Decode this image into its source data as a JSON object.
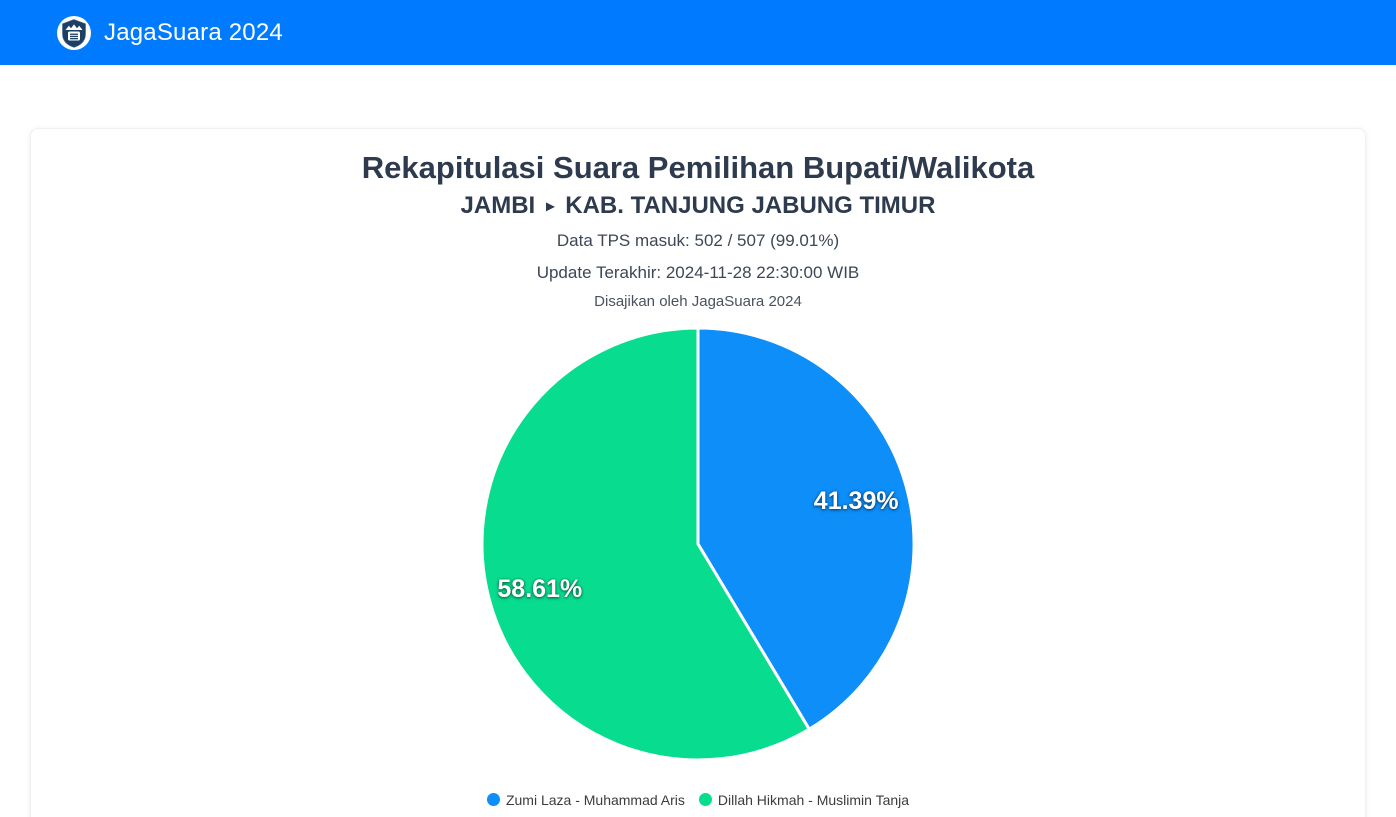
{
  "header": {
    "app_title": "JagaSuara 2024",
    "logo": "jagasuara-shield-logo"
  },
  "main": {
    "title": "Rekapitulasi Suara Pemilihan Bupati/Walikota",
    "breadcrumb": {
      "province": "JAMBI",
      "separator": "▸",
      "region": "KAB. TANJUNG JABUNG TIMUR"
    },
    "tps_line": "Data TPS masuk: 502 / 507 (99.01%)",
    "update_line": "Update Terakhir: 2024-11-28 22:30:00 WIB",
    "presented_line": "Disajikan oleh JagaSuara 2024"
  },
  "colors": {
    "header_bg": "#007bff",
    "title_text": "#2e3a4d",
    "info_text": "#3d4755",
    "pie_blue": "#0d8ef8",
    "pie_green": "#08dc8f"
  },
  "chart_data": {
    "type": "pie",
    "title": "Rekapitulasi Suara Pemilihan Bupati/Walikota",
    "categories": [
      "Zumi Laza - Muhammad Aris",
      "Dillah Hikmah - Muslimin Tanja"
    ],
    "values": [
      41.39,
      58.61
    ],
    "labels": [
      "41.39%",
      "58.61%"
    ],
    "colors": [
      "#0d8ef8",
      "#08dc8f"
    ],
    "start_angle_deg": 0,
    "direction": "clockwise",
    "legend_position": "bottom",
    "slice_border_color": "#ffffff"
  }
}
